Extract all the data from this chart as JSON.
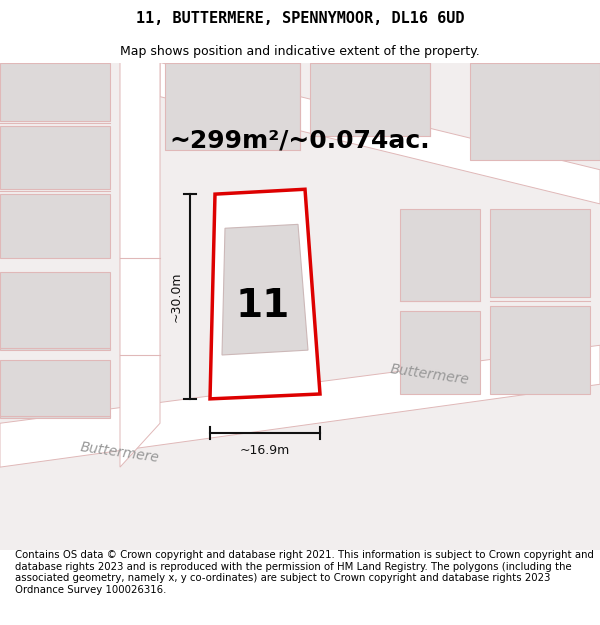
{
  "title": "11, BUTTERMERE, SPENNYMOOR, DL16 6UD",
  "subtitle": "Map shows position and indicative extent of the property.",
  "footer": "Contains OS data © Crown copyright and database right 2021. This information is subject to Crown copyright and database rights 2023 and is reproduced with the permission of HM Land Registry. The polygons (including the associated geometry, namely x, y co-ordinates) are subject to Crown copyright and database rights 2023 Ordnance Survey 100026316.",
  "area_label": "~299m²/~0.074ac.",
  "width_label": "~16.9m",
  "height_label": "~30.0m",
  "plot_number": "11",
  "street_label_1": "Buttermere",
  "street_label_2": "Buttermere",
  "bg_color": "#f2eeee",
  "plot_fill": "white",
  "plot_edge": "#dd0000",
  "building_fill": "#ddd9d9",
  "road_fill": "#ffffff",
  "line_color": "#e0b8b8",
  "dim_color": "#111111",
  "figsize": [
    6.0,
    6.25
  ],
  "dpi": 100,
  "title_fontsize": 11,
  "subtitle_fontsize": 9,
  "footer_fontsize": 7.3,
  "area_fontsize": 18,
  "number_fontsize": 28,
  "street_fontsize": 10,
  "dim_fontsize": 9
}
